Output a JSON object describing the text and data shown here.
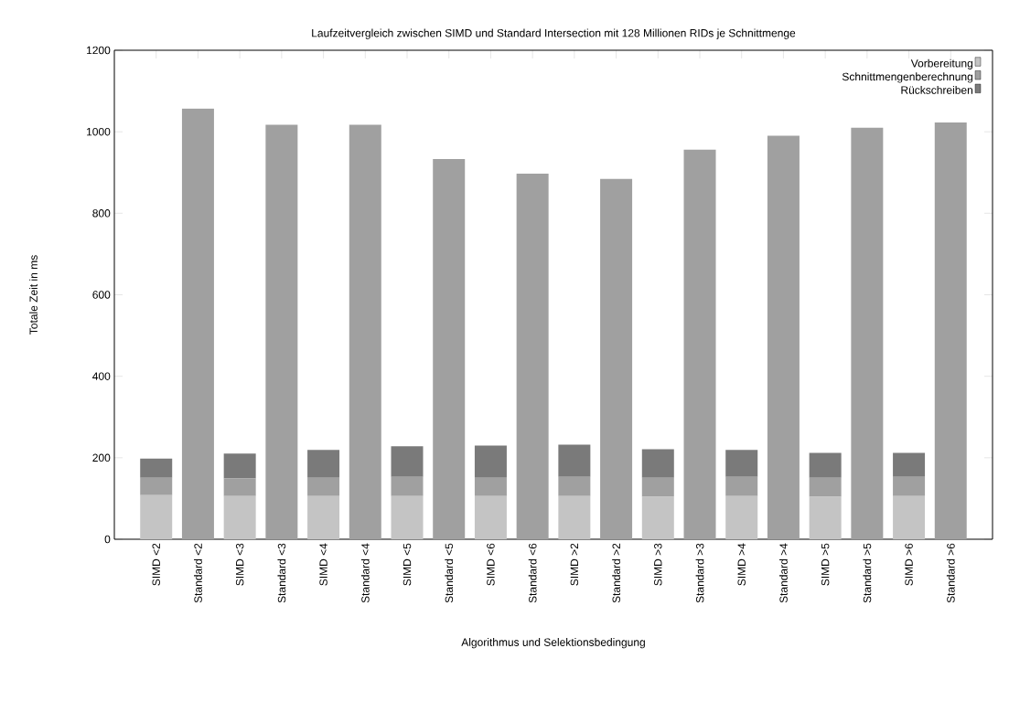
{
  "chart_data": {
    "type": "bar",
    "stacked": true,
    "title": "Laufzeitvergleich zwischen SIMD und Standard Intersection mit 128 Millionen RIDs je Schnittmenge",
    "xlabel": "Algorithmus und Selektionsbedingung",
    "ylabel": "Totale Zeit in ms",
    "categories": [
      "SIMD <2",
      "Standard <2",
      "SIMD <3",
      "Standard <3",
      "SIMD <4",
      "Standard <4",
      "SIMD <5",
      "Standard <5",
      "SIMD <6",
      "Standard <6",
      "SIMD >2",
      "Standard >2",
      "SIMD >3",
      "Standard >3",
      "SIMD >4",
      "Standard >4",
      "SIMD >5",
      "Standard >5",
      "SIMD >6",
      "Standard >6"
    ],
    "series": [
      {
        "name": "Vorbereitung",
        "color": "#c4c4c4",
        "values": [
          108,
          null,
          106,
          null,
          106,
          null,
          106,
          null,
          106,
          null,
          106,
          null,
          104,
          null,
          106,
          null,
          104,
          null,
          106,
          null
        ]
      },
      {
        "name": "Schnittmengenberechnung",
        "color": "#a0a0a0",
        "values": [
          43,
          1057,
          43,
          1017,
          45,
          1017,
          47,
          933,
          45,
          897,
          47,
          884,
          47,
          956,
          47,
          990,
          47,
          1010,
          47,
          1023
        ]
      },
      {
        "name": "Rückschreiben",
        "color": "#7a7a7a",
        "values": [
          47,
          null,
          61,
          null,
          68,
          null,
          75,
          null,
          79,
          null,
          79,
          null,
          70,
          null,
          66,
          null,
          61,
          null,
          59,
          null
        ]
      }
    ],
    "ylim": [
      0,
      1200
    ],
    "yticks": [
      0,
      200,
      400,
      600,
      800,
      1000,
      1200
    ],
    "legend": "top right",
    "grid": false
  }
}
